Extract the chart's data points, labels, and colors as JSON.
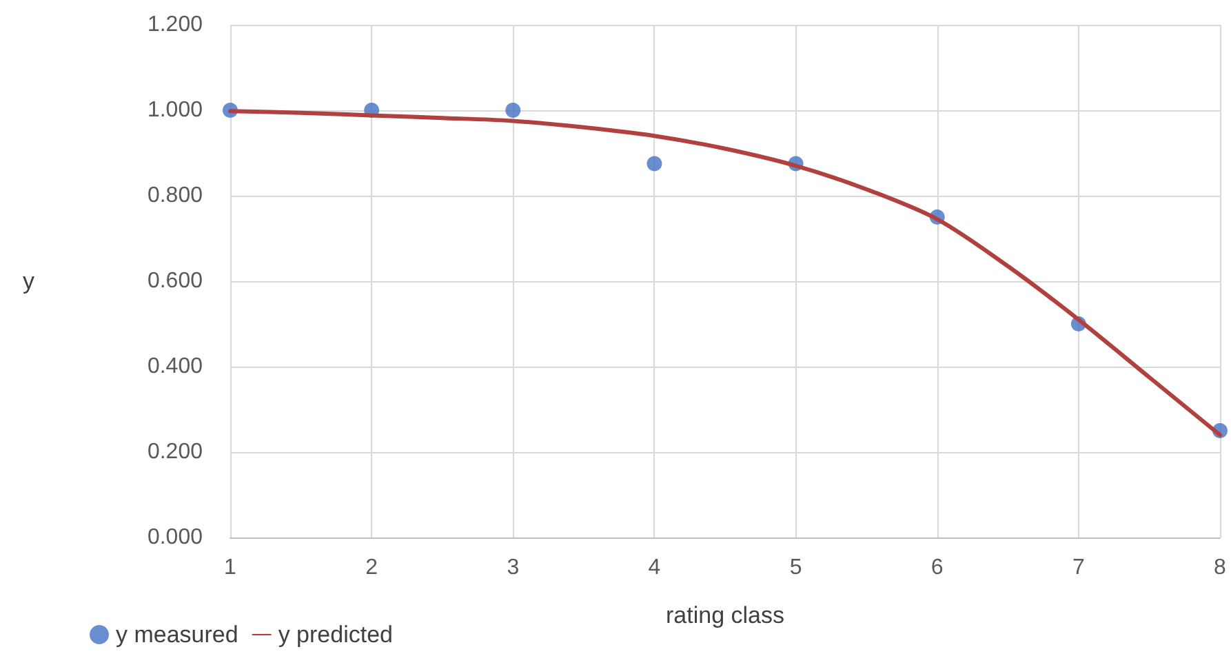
{
  "chart_data": {
    "type": "scatter",
    "xlabel": "rating class",
    "ylabel": "y",
    "x": [
      1,
      2,
      3,
      4,
      5,
      6,
      7,
      8
    ],
    "series": [
      {
        "name": "y measured",
        "color": "#4472c4",
        "marker": "circle",
        "values": [
          1.0,
          1.0,
          1.0,
          0.875,
          0.875,
          0.75,
          0.5,
          0.25
        ]
      },
      {
        "name": "y predicted",
        "type": "line",
        "color": "#b0413e",
        "marker": "none",
        "line_style": "solid",
        "x": [
          1,
          1.5,
          2,
          2.5,
          3,
          3.5,
          4,
          4.5,
          5,
          5.5,
          6,
          6.5,
          7,
          7.5,
          8
        ],
        "values": [
          0.998,
          0.994,
          0.988,
          0.982,
          0.975,
          0.96,
          0.94,
          0.91,
          0.87,
          0.815,
          0.745,
          0.635,
          0.51,
          0.375,
          0.24
        ]
      }
    ],
    "xlim": [
      1,
      8
    ],
    "xticks": [
      1,
      2,
      3,
      4,
      5,
      6,
      7,
      8
    ],
    "ylim": [
      0,
      1.2
    ],
    "yticks": [
      {
        "value": 0,
        "label": "0.000"
      },
      {
        "value": 0.2,
        "label": "0.200"
      },
      {
        "value": 0.4,
        "label": "0.400"
      },
      {
        "value": 0.6,
        "label": "0.600"
      },
      {
        "value": 0.8,
        "label": "0.800"
      },
      {
        "value": 1.0,
        "label": "1.000"
      },
      {
        "value": 1.2,
        "label": "1.200"
      }
    ],
    "grid": true,
    "legend": "bottom left"
  }
}
